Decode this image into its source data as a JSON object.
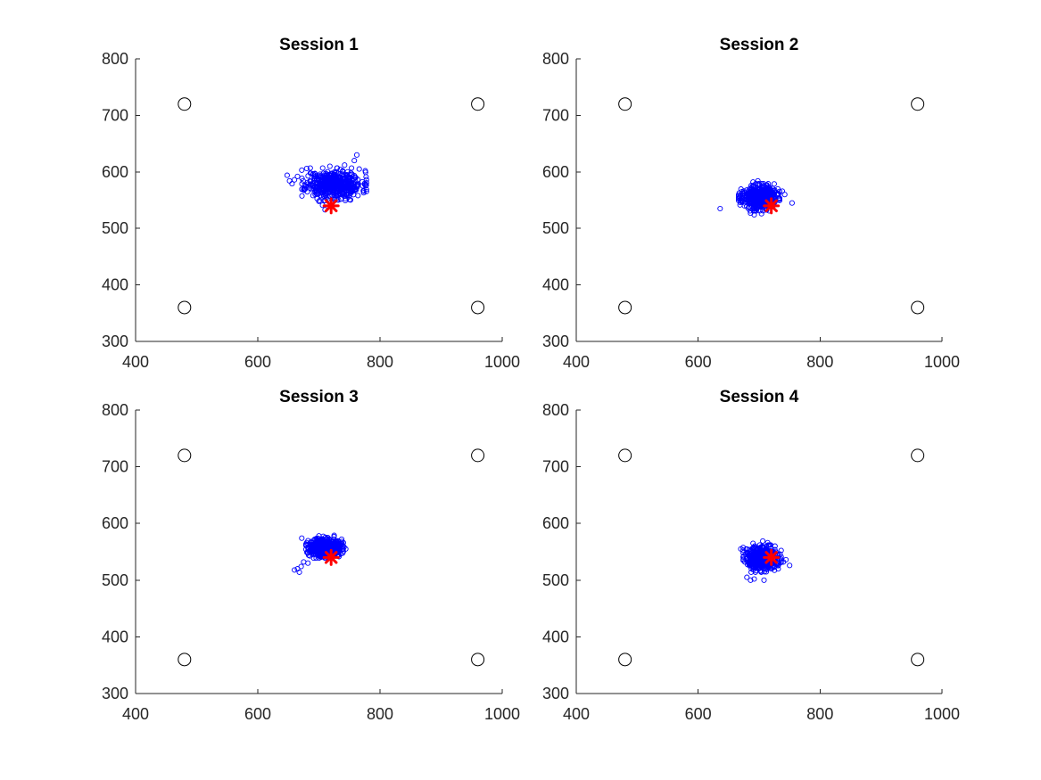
{
  "colors": {
    "gaze_points": "#0000ff",
    "target_marker": "#ff0000",
    "reference_markers": "#000000",
    "axes": "#262626",
    "background": "#ffffff"
  },
  "chart_data": [
    {
      "type": "scatter",
      "title": "Session 1",
      "xlim": [
        400,
        1000
      ],
      "ylim": [
        300,
        800
      ],
      "xticks": [
        "400",
        "600",
        "800",
        "1000"
      ],
      "yticks": [
        "300",
        "400",
        "500",
        "600",
        "700",
        "800"
      ],
      "grid": false,
      "reference_points": [
        [
          480,
          720
        ],
        [
          960,
          720
        ],
        [
          480,
          360
        ],
        [
          960,
          360
        ]
      ],
      "target": [
        720,
        540
      ],
      "cluster": {
        "center": [
          725,
          578
        ],
        "spread": [
          22,
          12
        ],
        "count": 520,
        "seed": 11
      },
      "extra_points": [
        [
          648,
          594
        ],
        [
          652,
          584
        ],
        [
          656,
          579
        ],
        [
          660,
          586
        ],
        [
          665,
          592
        ],
        [
          672,
          603
        ],
        [
          680,
          606
        ],
        [
          686,
          598
        ],
        [
          690,
          575
        ],
        [
          694,
          560
        ],
        [
          700,
          548
        ],
        [
          706,
          541
        ],
        [
          710,
          533
        ],
        [
          758,
          620
        ],
        [
          762,
          630
        ],
        [
          766,
          605
        ],
        [
          764,
          558
        ],
        [
          760,
          590
        ],
        [
          742,
          612
        ],
        [
          718,
          610
        ]
      ]
    },
    {
      "type": "scatter",
      "title": "Session 2",
      "xlim": [
        400,
        1000
      ],
      "ylim": [
        300,
        800
      ],
      "xticks": [
        "400",
        "600",
        "800",
        "1000"
      ],
      "yticks": [
        "300",
        "400",
        "500",
        "600",
        "700",
        "800"
      ],
      "grid": false,
      "reference_points": [
        [
          480,
          720
        ],
        [
          960,
          720
        ],
        [
          480,
          360
        ],
        [
          960,
          360
        ]
      ],
      "target": [
        720,
        540
      ],
      "cluster": {
        "center": [
          700,
          555
        ],
        "spread": [
          14,
          10
        ],
        "count": 520,
        "seed": 23
      },
      "extra_points": [
        [
          636,
          535
        ],
        [
          668,
          555
        ],
        [
          672,
          548
        ],
        [
          676,
          540
        ],
        [
          738,
          566
        ],
        [
          742,
          560
        ],
        [
          754,
          545
        ],
        [
          690,
          582
        ],
        [
          698,
          584
        ],
        [
          686,
          527
        ],
        [
          692,
          524
        ],
        [
          704,
          526
        ]
      ]
    },
    {
      "type": "scatter",
      "title": "Session 3",
      "xlim": [
        400,
        1000
      ],
      "ylim": [
        300,
        800
      ],
      "xticks": [
        "400",
        "600",
        "800",
        "1000"
      ],
      "yticks": [
        "300",
        "400",
        "500",
        "600",
        "700",
        "800"
      ],
      "grid": false,
      "reference_points": [
        [
          480,
          720
        ],
        [
          960,
          720
        ],
        [
          480,
          360
        ],
        [
          960,
          360
        ]
      ],
      "target": [
        720,
        540
      ],
      "cluster": {
        "center": [
          710,
          558
        ],
        "spread": [
          13,
          8
        ],
        "count": 520,
        "seed": 37
      },
      "extra_points": [
        [
          660,
          518
        ],
        [
          665,
          520
        ],
        [
          668,
          514
        ],
        [
          671,
          524
        ],
        [
          675,
          532
        ],
        [
          672,
          574
        ],
        [
          680,
          566
        ],
        [
          682,
          530
        ],
        [
          690,
          545
        ],
        [
          740,
          566
        ],
        [
          744,
          555
        ],
        [
          725,
          579
        ],
        [
          700,
          578
        ]
      ]
    },
    {
      "type": "scatter",
      "title": "Session 4",
      "xlim": [
        400,
        1000
      ],
      "ylim": [
        300,
        800
      ],
      "xticks": [
        "400",
        "600",
        "800",
        "1000"
      ],
      "yticks": [
        "300",
        "400",
        "500",
        "600",
        "700",
        "800"
      ],
      "grid": false,
      "reference_points": [
        [
          480,
          720
        ],
        [
          960,
          720
        ],
        [
          480,
          360
        ],
        [
          960,
          360
        ]
      ],
      "target": [
        720,
        540
      ],
      "cluster": {
        "center": [
          705,
          538
        ],
        "spread": [
          13,
          10
        ],
        "count": 520,
        "seed": 51
      },
      "extra_points": [
        [
          680,
          505
        ],
        [
          686,
          500
        ],
        [
          692,
          502
        ],
        [
          708,
          500
        ],
        [
          670,
          555
        ],
        [
          674,
          548
        ],
        [
          740,
          532
        ],
        [
          744,
          536
        ],
        [
          750,
          526
        ],
        [
          706,
          569
        ],
        [
          714,
          566
        ],
        [
          726,
          560
        ],
        [
          690,
          565
        ]
      ]
    }
  ]
}
